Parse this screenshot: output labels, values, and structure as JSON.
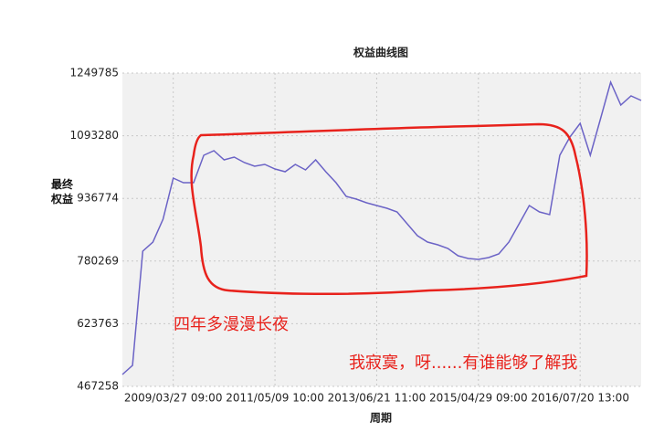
{
  "chart_data": {
    "type": "line",
    "title": "权益曲线图",
    "x_label": "周期",
    "y_label": "最终权益",
    "color": "#6b63c6",
    "grid": true,
    "categories": [
      null,
      null,
      null,
      null,
      null,
      "2009/03/27 09:00",
      null,
      null,
      null,
      null,
      null,
      null,
      null,
      null,
      null,
      "2011/05/09 10:00",
      null,
      null,
      null,
      null,
      null,
      null,
      null,
      null,
      null,
      "2013/06/21 11:00",
      null,
      null,
      null,
      null,
      null,
      null,
      null,
      null,
      null,
      "2015/04/29 09:00",
      null,
      null,
      null,
      null,
      null,
      null,
      null,
      null,
      null,
      "2016/07/20 13:00",
      null,
      null,
      null,
      null,
      null,
      null
    ],
    "values": [
      497000,
      519700,
      804900,
      827700,
      884800,
      987400,
      976000,
      976000,
      1044500,
      1055900,
      1033100,
      1039900,
      1026200,
      1017100,
      1021700,
      1010300,
      1003400,
      1021700,
      1008000,
      1033100,
      1003400,
      976000,
      941800,
      935000,
      925900,
      919000,
      912200,
      903000,
      873400,
      843700,
      827700,
      820900,
      811800,
      793500,
      786700,
      784400,
      789000,
      798100,
      827700,
      873400,
      919000,
      903000,
      896200,
      1044500,
      1090100,
      1124300,
      1044500,
      1135700,
      1227000,
      1170000,
      1192800,
      1181400
    ],
    "ylim": [
      467258,
      1249785
    ],
    "yticks": [
      467258,
      623763,
      780269,
      936774,
      1093280,
      1249785
    ],
    "annotations": [
      "四年多漫漫长夜",
      "我寂寞，呀......有谁能够了解我"
    ]
  }
}
